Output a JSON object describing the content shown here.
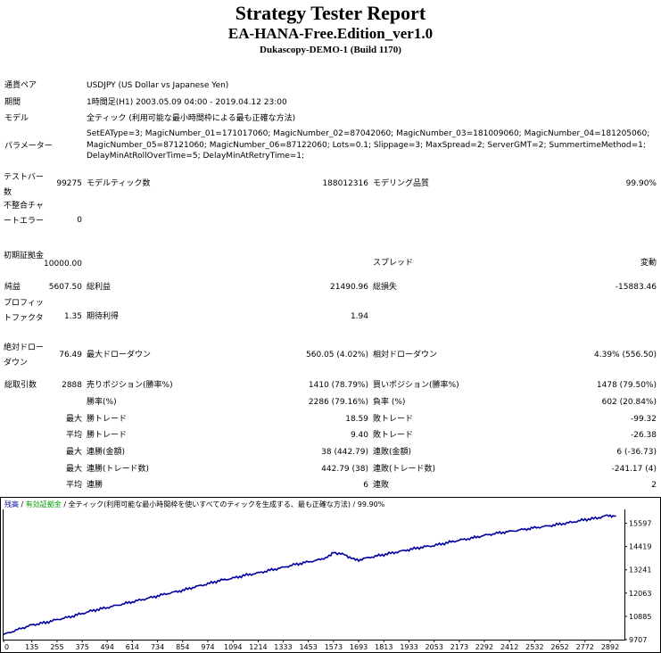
{
  "header": {
    "title": "Strategy Tester Report",
    "ea_name": "EA-HANA-Free.Edition_ver1.0",
    "server": "Dukascopy-DEMO-1 (Build 1170)"
  },
  "info": {
    "symbol_label": "通貨ペア",
    "symbol_value": "USDJPY (US Dollar vs Japanese Yen)",
    "period_label": "期間",
    "period_value": "1時間足(H1) 2003.05.09 04:00 - 2019.04.12 23:00",
    "model_label": "モデル",
    "model_value": "全ティック (利用可能な最小時間枠による最も正確な方法)",
    "params_label": "パラメーター",
    "params_value": "SetEAType=3; MagicNumber_01=171017060; MagicNumber_02=87042060; MagicNumber_03=181009060; MagicNumber_04=181205060; MagicNumber_05=87121060; MagicNumber_06=87122060; Lots=0.1; Slippage=3; MaxSpread=2; ServerGMT=2; SummertimeMethod=1; DelayMinAtRollOverTime=5; DelayMinAtRetryTime=1;"
  },
  "stats": {
    "bars_label": "テストバー数",
    "bars_value": "99275",
    "ticks_label": "モデルティック数",
    "ticks_value": "188012316",
    "quality_label": "モデリング品質",
    "quality_value": "99.90%",
    "mismatch_label": "不整合チャートエラー",
    "mismatch_value": "0",
    "deposit_label": "初期証拠金",
    "deposit_value": "10000.00",
    "spread_label": "スプレッド",
    "spread_value": "変動",
    "net_label": "純益",
    "net_value": "5607.50",
    "gross_profit_label": "総利益",
    "gross_profit_value": "21490.96",
    "gross_loss_label": "総損失",
    "gross_loss_value": "-15883.46",
    "pf_label": "プロフィットファクタ",
    "pf_value": "1.35",
    "payoff_label": "期待利得",
    "payoff_value": "1.94",
    "abs_dd_label": "絶対ドローダウン",
    "abs_dd_value": "76.49",
    "max_dd_label": "最大ドローダウン",
    "max_dd_value": "560.05 (4.02%)",
    "rel_dd_label": "相対ドローダウン",
    "rel_dd_value": "4.39% (556.50)",
    "trades_label": "総取引数",
    "trades_value": "2888",
    "short_label": "売りポジション(勝率%)",
    "short_value": "1410 (78.79%)",
    "long_label": "買いポジション(勝率%)",
    "long_value": "1478 (79.50%)",
    "win_label": "勝率(%)",
    "win_value": "2286 (79.16%)",
    "loss_label": "負率 (%)",
    "loss_value": "602 (20.84%)",
    "largest": "最大",
    "largest_win_label": "勝トレード",
    "largest_win_value": "18.59",
    "largest_loss_label": "敗トレード",
    "largest_loss_value": "-99.32",
    "average": "平均",
    "avg_win_label": "勝トレード",
    "avg_win_value": "9.40",
    "avg_loss_label": "敗トレード",
    "avg_loss_value": "-26.38",
    "max1": "最大",
    "max_cons_wins_label": "連勝(金額)",
    "max_cons_wins_value": "38 (442.79)",
    "max_cons_losses_label": "連敗(金額)",
    "max_cons_losses_value": "6 (-36.73)",
    "max2": "最大",
    "max_cons_profit_label": "連勝(トレード数)",
    "max_cons_profit_value": "442.79 (38)",
    "max_cons_loss_label": "連敗(トレード数)",
    "max_cons_loss_value": "-241.17 (4)",
    "avg2": "平均",
    "avg_cons_wins_label": "連勝",
    "avg_cons_wins_value": "6",
    "avg_cons_losses_label": "連敗",
    "avg_cons_losses_value": "2"
  },
  "chart_data": {
    "type": "line",
    "legend": {
      "balance": "残高",
      "sep1": " / ",
      "equity": "有効証拠金",
      "sep2": " / ",
      "model": "全ティック(利用可能な最小時間枠を使いすべてのティックを生成する、最も正確な方法)",
      "sep3": " / ",
      "quality": "99.90%"
    },
    "colors": {
      "balance": "#0000a0",
      "equity": "#00a000",
      "axis": "#000000"
    },
    "x_ticks": [
      0,
      135,
      255,
      375,
      494,
      614,
      734,
      854,
      974,
      1094,
      1214,
      1333,
      1453,
      1573,
      1693,
      1813,
      1933,
      2053,
      2173,
      2292,
      2412,
      2532,
      2652,
      2772,
      2892
    ],
    "y_ticks": [
      9707,
      10885,
      12063,
      13241,
      14419,
      15597
    ],
    "xlim": [
      0,
      2960
    ],
    "ylim": [
      9707,
      16300
    ],
    "x": [
      0,
      50,
      100,
      135,
      200,
      255,
      320,
      375,
      430,
      494,
      560,
      614,
      680,
      734,
      790,
      854,
      910,
      974,
      1030,
      1094,
      1150,
      1214,
      1270,
      1333,
      1390,
      1453,
      1510,
      1560,
      1573,
      1600,
      1630,
      1650,
      1670,
      1693,
      1740,
      1813,
      1870,
      1933,
      1990,
      2053,
      2110,
      2173,
      2230,
      2292,
      2350,
      2412,
      2470,
      2532,
      2590,
      2652,
      2710,
      2772,
      2830,
      2870,
      2892,
      2920
    ],
    "series": [
      {
        "values": [
          9960,
          10150,
          10330,
          10450,
          10570,
          10720,
          10870,
          11030,
          11190,
          11330,
          11490,
          11620,
          11780,
          11920,
          12060,
          12200,
          12370,
          12530,
          12700,
          12820,
          12960,
          13080,
          13220,
          13360,
          13510,
          13640,
          13760,
          13960,
          14140,
          14050,
          14000,
          13880,
          13760,
          13740,
          13860,
          14010,
          14130,
          14260,
          14380,
          14470,
          14600,
          14740,
          14840,
          14980,
          15090,
          15180,
          15270,
          15370,
          15450,
          15550,
          15650,
          15780,
          15860,
          15970,
          15990,
          15960
        ]
      }
    ]
  }
}
